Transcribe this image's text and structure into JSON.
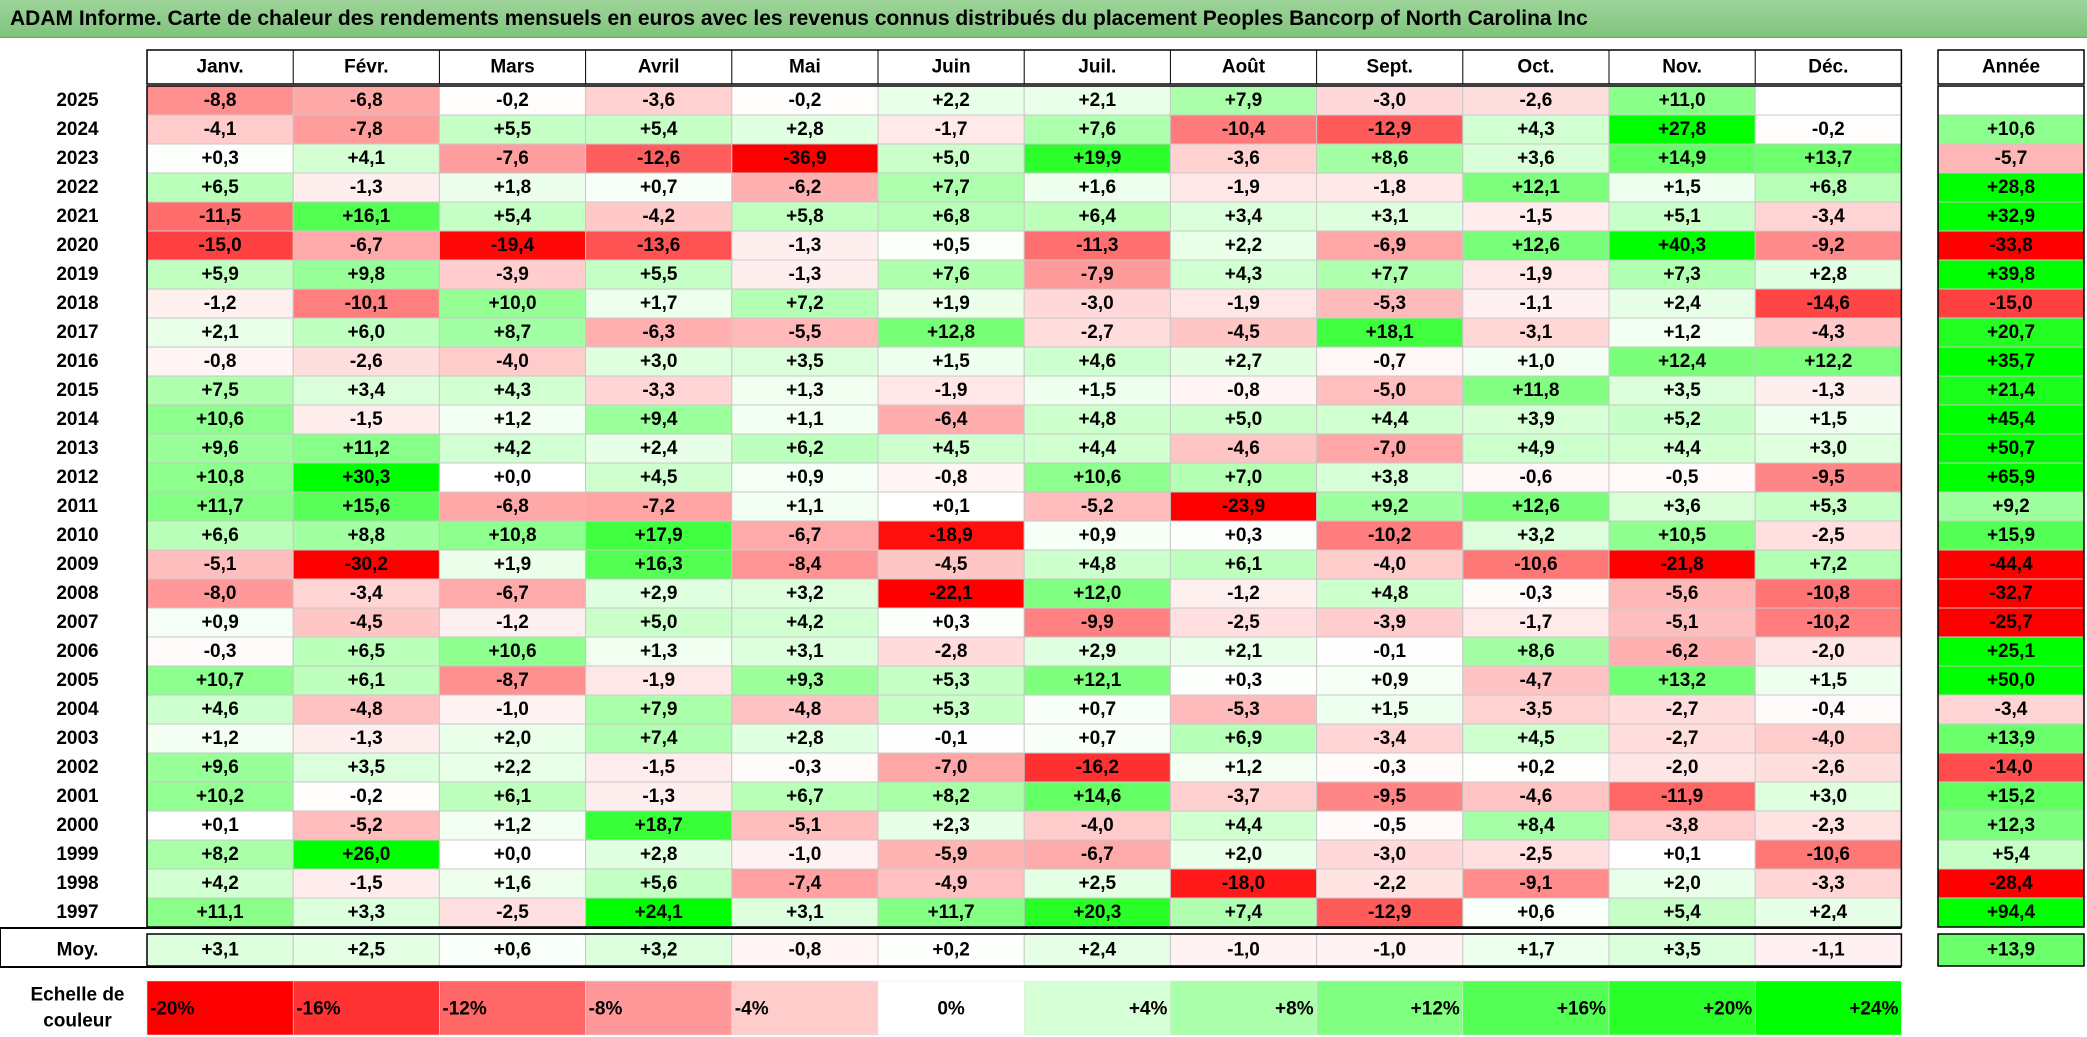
{
  "title": "ADAM Informe. Carte de chaleur des rendements mensuels en euros avec les revenus connus distribués du placement Peoples Bancorp of North Carolina Inc",
  "chart_data": {
    "type": "heatmap",
    "months": [
      "Janv.",
      "Févr.",
      "Mars",
      "Avril",
      "Mai",
      "Juin",
      "Juil.",
      "Août",
      "Sept.",
      "Oct.",
      "Nov.",
      "Déc."
    ],
    "year_header": "Année",
    "rows": [
      {
        "year": "2025",
        "values": [
          "-8,8",
          "-6,8",
          "-0,2",
          "-3,6",
          "-0,2",
          "+2,2",
          "+2,1",
          "+7,9",
          "-3,0",
          "-2,6",
          "+11,0",
          ""
        ],
        "annual": ""
      },
      {
        "year": "2024",
        "values": [
          "-4,1",
          "-7,8",
          "+5,5",
          "+5,4",
          "+2,8",
          "-1,7",
          "+7,6",
          "-10,4",
          "-12,9",
          "+4,3",
          "+27,8",
          "-0,2"
        ],
        "annual": "+10,6"
      },
      {
        "year": "2023",
        "values": [
          "+0,3",
          "+4,1",
          "-7,6",
          "-12,6",
          "-36,9",
          "+5,0",
          "+19,9",
          "-3,6",
          "+8,6",
          "+3,6",
          "+14,9",
          "+13,7"
        ],
        "annual": "-5,7"
      },
      {
        "year": "2022",
        "values": [
          "+6,5",
          "-1,3",
          "+1,8",
          "+0,7",
          "-6,2",
          "+7,7",
          "+1,6",
          "-1,9",
          "-1,8",
          "+12,1",
          "+1,5",
          "+6,8"
        ],
        "annual": "+28,8"
      },
      {
        "year": "2021",
        "values": [
          "-11,5",
          "+16,1",
          "+5,4",
          "-4,2",
          "+5,8",
          "+6,8",
          "+6,4",
          "+3,4",
          "+3,1",
          "-1,5",
          "+5,1",
          "-3,4"
        ],
        "annual": "+32,9"
      },
      {
        "year": "2020",
        "values": [
          "-15,0",
          "-6,7",
          "-19,4",
          "-13,6",
          "-1,3",
          "+0,5",
          "-11,3",
          "+2,2",
          "-6,9",
          "+12,6",
          "+40,3",
          "-9,2"
        ],
        "annual": "-33,8"
      },
      {
        "year": "2019",
        "values": [
          "+5,9",
          "+9,8",
          "-3,9",
          "+5,5",
          "-1,3",
          "+7,6",
          "-7,9",
          "+4,3",
          "+7,7",
          "-1,9",
          "+7,3",
          "+2,8"
        ],
        "annual": "+39,8"
      },
      {
        "year": "2018",
        "values": [
          "-1,2",
          "-10,1",
          "+10,0",
          "+1,7",
          "+7,2",
          "+1,9",
          "-3,0",
          "-1,9",
          "-5,3",
          "-1,1",
          "+2,4",
          "-14,6"
        ],
        "annual": "-15,0"
      },
      {
        "year": "2017",
        "values": [
          "+2,1",
          "+6,0",
          "+8,7",
          "-6,3",
          "-5,5",
          "+12,8",
          "-2,7",
          "-4,5",
          "+18,1",
          "-3,1",
          "+1,2",
          "-4,3"
        ],
        "annual": "+20,7"
      },
      {
        "year": "2016",
        "values": [
          "-0,8",
          "-2,6",
          "-4,0",
          "+3,0",
          "+3,5",
          "+1,5",
          "+4,6",
          "+2,7",
          "-0,7",
          "+1,0",
          "+12,4",
          "+12,2"
        ],
        "annual": "+35,7"
      },
      {
        "year": "2015",
        "values": [
          "+7,5",
          "+3,4",
          "+4,3",
          "-3,3",
          "+1,3",
          "-1,9",
          "+1,5",
          "-0,8",
          "-5,0",
          "+11,8",
          "+3,5",
          "-1,3"
        ],
        "annual": "+21,4"
      },
      {
        "year": "2014",
        "values": [
          "+10,6",
          "-1,5",
          "+1,2",
          "+9,4",
          "+1,1",
          "-6,4",
          "+4,8",
          "+5,0",
          "+4,4",
          "+3,9",
          "+5,2",
          "+1,5"
        ],
        "annual": "+45,4"
      },
      {
        "year": "2013",
        "values": [
          "+9,6",
          "+11,2",
          "+4,2",
          "+2,4",
          "+6,2",
          "+4,5",
          "+4,4",
          "-4,6",
          "-7,0",
          "+4,9",
          "+4,4",
          "+3,0"
        ],
        "annual": "+50,7"
      },
      {
        "year": "2012",
        "values": [
          "+10,8",
          "+30,3",
          "+0,0",
          "+4,5",
          "+0,9",
          "-0,8",
          "+10,6",
          "+7,0",
          "+3,8",
          "-0,6",
          "-0,5",
          "-9,5"
        ],
        "annual": "+65,9"
      },
      {
        "year": "2011",
        "values": [
          "+11,7",
          "+15,6",
          "-6,8",
          "-7,2",
          "+1,1",
          "+0,1",
          "-5,2",
          "-23,9",
          "+9,2",
          "+12,6",
          "+3,6",
          "+5,3"
        ],
        "annual": "+9,2"
      },
      {
        "year": "2010",
        "values": [
          "+6,6",
          "+8,8",
          "+10,8",
          "+17,9",
          "-6,7",
          "-18,9",
          "+0,9",
          "+0,3",
          "-10,2",
          "+3,2",
          "+10,5",
          "-2,5"
        ],
        "annual": "+15,9"
      },
      {
        "year": "2009",
        "values": [
          "-5,1",
          "-30,2",
          "+1,9",
          "+16,3",
          "-8,4",
          "-4,5",
          "+4,8",
          "+6,1",
          "-4,0",
          "-10,6",
          "-21,8",
          "+7,2"
        ],
        "annual": "-44,4"
      },
      {
        "year": "2008",
        "values": [
          "-8,0",
          "-3,4",
          "-6,7",
          "+2,9",
          "+3,2",
          "-22,1",
          "+12,0",
          "-1,2",
          "+4,8",
          "-0,3",
          "-5,6",
          "-10,8"
        ],
        "annual": "-32,7"
      },
      {
        "year": "2007",
        "values": [
          "+0,9",
          "-4,5",
          "-1,2",
          "+5,0",
          "+4,2",
          "+0,3",
          "-9,9",
          "-2,5",
          "-3,9",
          "-1,7",
          "-5,1",
          "-10,2"
        ],
        "annual": "-25,7"
      },
      {
        "year": "2006",
        "values": [
          "-0,3",
          "+6,5",
          "+10,6",
          "+1,3",
          "+3,1",
          "-2,8",
          "+2,9",
          "+2,1",
          "-0,1",
          "+8,6",
          "-6,2",
          "-2,0"
        ],
        "annual": "+25,1"
      },
      {
        "year": "2005",
        "values": [
          "+10,7",
          "+6,1",
          "-8,7",
          "-1,9",
          "+9,3",
          "+5,3",
          "+12,1",
          "+0,3",
          "+0,9",
          "-4,7",
          "+13,2",
          "+1,5"
        ],
        "annual": "+50,0"
      },
      {
        "year": "2004",
        "values": [
          "+4,6",
          "-4,8",
          "-1,0",
          "+7,9",
          "-4,8",
          "+5,3",
          "+0,7",
          "-5,3",
          "+1,5",
          "-3,5",
          "-2,7",
          "-0,4"
        ],
        "annual": "-3,4"
      },
      {
        "year": "2003",
        "values": [
          "+1,2",
          "-1,3",
          "+2,0",
          "+7,4",
          "+2,8",
          "-0,1",
          "+0,7",
          "+6,9",
          "-3,4",
          "+4,5",
          "-2,7",
          "-4,0"
        ],
        "annual": "+13,9"
      },
      {
        "year": "2002",
        "values": [
          "+9,6",
          "+3,5",
          "+2,2",
          "-1,5",
          "-0,3",
          "-7,0",
          "-16,2",
          "+1,2",
          "-0,3",
          "+0,2",
          "-2,0",
          "-2,6"
        ],
        "annual": "-14,0"
      },
      {
        "year": "2001",
        "values": [
          "+10,2",
          "-0,2",
          "+6,1",
          "-1,3",
          "+6,7",
          "+8,2",
          "+14,6",
          "-3,7",
          "-9,5",
          "-4,6",
          "-11,9",
          "+3,0"
        ],
        "annual": "+15,2"
      },
      {
        "year": "2000",
        "values": [
          "+0,1",
          "-5,2",
          "+1,2",
          "+18,7",
          "-5,1",
          "+2,3",
          "-4,0",
          "+4,4",
          "-0,5",
          "+8,4",
          "-3,8",
          "-2,3"
        ],
        "annual": "+12,3"
      },
      {
        "year": "1999",
        "values": [
          "+8,2",
          "+26,0",
          "+0,0",
          "+2,8",
          "-1,0",
          "-5,9",
          "-6,7",
          "+2,0",
          "-3,0",
          "-2,5",
          "+0,1",
          "-10,6"
        ],
        "annual": "+5,4"
      },
      {
        "year": "1998",
        "values": [
          "+4,2",
          "-1,5",
          "+1,6",
          "+5,6",
          "-7,4",
          "-4,9",
          "+2,5",
          "-18,0",
          "-2,2",
          "-9,1",
          "+2,0",
          "-3,3"
        ],
        "annual": "-28,4"
      },
      {
        "year": "1997",
        "values": [
          "+11,1",
          "+3,3",
          "-2,5",
          "+24,1",
          "+3,1",
          "+11,7",
          "+20,3",
          "+7,4",
          "-12,9",
          "+0,6",
          "+5,4",
          "+2,4"
        ],
        "annual": "+94,4"
      }
    ],
    "average": {
      "label": "Moy.",
      "values": [
        "+3,1",
        "+2,5",
        "+0,6",
        "+3,2",
        "-0,8",
        "+0,2",
        "+2,4",
        "-1,0",
        "-1,0",
        "+1,7",
        "+3,5",
        "-1,1"
      ],
      "annual": "+13,9"
    },
    "scale": {
      "label_line1": "Echelle de",
      "label_line2": "couleur",
      "labels": [
        "-20%",
        "-16%",
        "-12%",
        "-8%",
        "-4%",
        "0%",
        "+4%",
        "+8%",
        "+12%",
        "+16%",
        "+20%",
        "+24%"
      ],
      "values": [
        -20,
        -16,
        -12,
        -8,
        -4,
        0,
        4,
        8,
        12,
        16,
        20,
        24
      ]
    },
    "colors": {
      "negative_max": "#ff0000",
      "positive_max": "#00ff00",
      "neutral": "#ffffff",
      "title_bar": "#8fcc8c"
    }
  }
}
